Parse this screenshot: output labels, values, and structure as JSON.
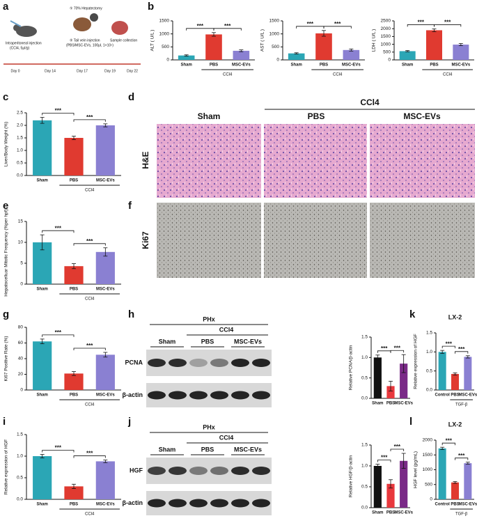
{
  "panel_labels": [
    "a",
    "b",
    "c",
    "d",
    "e",
    "f",
    "g",
    "h",
    "k",
    "i",
    "j",
    "l"
  ],
  "schematic": {
    "steps": [
      "Intraperitoneal injection",
      "(CCl4, 5μl/g)",
      "① 70% Hepatectomy",
      "② Tail vein injection",
      "(PBS/MSC-EVs, 100μl, 1×10⁹)",
      "Sample collection"
    ],
    "days": [
      "Day 0",
      "Day 14",
      "Day 17",
      "Day 19",
      "Day 22"
    ]
  },
  "histology": {
    "group": "CCl4",
    "columns": [
      "Sham",
      "PBS",
      "MSC-EVs"
    ],
    "rows": [
      "H&E",
      "Ki67"
    ]
  },
  "blots": [
    {
      "top": "PHx",
      "group": "CCl4",
      "columns": [
        "Sham",
        "PBS",
        "MSC-EVs"
      ],
      "rows": [
        "PCNA",
        "β-actin"
      ]
    },
    {
      "top": "PHx",
      "group": "CCl4",
      "columns": [
        "Sham",
        "PBS",
        "MSC-EVs"
      ],
      "rows": [
        "HGF",
        "β-actin"
      ]
    }
  ],
  "chart_data": [
    {
      "type": "bar",
      "ylabel": "ALT ( U/L )",
      "categories": [
        "Sham",
        "PBS",
        "MSC-EVs"
      ],
      "values": [
        170,
        980,
        350
      ],
      "errors": [
        25,
        70,
        35
      ],
      "colors": [
        "#2ba6b5",
        "#e03a30",
        "#8a80d2"
      ],
      "ylim": [
        0,
        1500
      ],
      "yticks": [
        0,
        500,
        1000,
        1500
      ],
      "group_label": "CCl4",
      "significance": [
        "***",
        "***"
      ]
    },
    {
      "type": "bar",
      "ylabel": "AST ( U/L )",
      "categories": [
        "Sham",
        "PBS",
        "MSC-EVs"
      ],
      "values": [
        250,
        1020,
        380
      ],
      "errors": [
        25,
        110,
        40
      ],
      "colors": [
        "#2ba6b5",
        "#e03a30",
        "#8a80d2"
      ],
      "ylim": [
        0,
        1500
      ],
      "yticks": [
        0,
        500,
        1000,
        1500
      ],
      "group_label": "CCl4",
      "significance": [
        "***",
        "***"
      ]
    },
    {
      "type": "bar",
      "ylabel": "LDH ( U/L )",
      "categories": [
        "Sham",
        "PBS",
        "MSC-EVs"
      ],
      "values": [
        560,
        1900,
        980
      ],
      "errors": [
        40,
        90,
        70
      ],
      "colors": [
        "#2ba6b5",
        "#e03a30",
        "#8a80d2"
      ],
      "ylim": [
        0,
        2500
      ],
      "yticks": [
        0,
        500,
        1000,
        1500,
        2000,
        2500
      ],
      "group_label": "CCl4",
      "significance": [
        "***",
        "***"
      ]
    },
    {
      "type": "bar",
      "ylabel": "Liver/Body Weight (%)",
      "categories": [
        "Sham",
        "PBS",
        "MSC-EVs"
      ],
      "values": [
        2.2,
        1.5,
        2.0
      ],
      "errors": [
        0.12,
        0.07,
        0.06
      ],
      "colors": [
        "#2ba6b5",
        "#e03a30",
        "#8a80d2"
      ],
      "ylim": [
        0,
        2.5
      ],
      "yticks": [
        {
          "value": 0,
          "label": "0.0"
        },
        0.5,
        {
          "value": 1,
          "label": "1.0"
        },
        1.5,
        {
          "value": 2,
          "label": "2.0"
        },
        2.5
      ],
      "group_label": "CCl4",
      "significance": [
        "***",
        "***"
      ]
    },
    {
      "type": "bar",
      "ylabel": "Hepatocelluar Mitotic Frequency (%per hpf)",
      "categories": [
        "Sham",
        "PBS",
        "MSC-EVs"
      ],
      "values": [
        10,
        4.3,
        7.7
      ],
      "errors": [
        1.8,
        0.6,
        1.0
      ],
      "colors": [
        "#2ba6b5",
        "#e03a30",
        "#8a80d2"
      ],
      "ylim": [
        0,
        15
      ],
      "yticks": [
        0,
        5,
        10,
        15
      ],
      "group_label": "CCl4",
      "significance": [
        "***",
        "***"
      ]
    },
    {
      "type": "bar",
      "ylabel": "Ki67 Positive Rate (%)",
      "categories": [
        "Sham",
        "PBS",
        "MSC-EVs"
      ],
      "values": [
        62,
        21,
        45
      ],
      "errors": [
        3,
        2.5,
        3
      ],
      "colors": [
        "#2ba6b5",
        "#e03a30",
        "#8a80d2"
      ],
      "ylim": [
        0,
        80
      ],
      "yticks": [
        0,
        20,
        40,
        60,
        80
      ],
      "group_label": "CCl4",
      "significance": [
        "***",
        "***"
      ]
    },
    {
      "type": "bar",
      "ylabel": "Relative PCNA/β-actin",
      "categories": [
        "Sham",
        "PBS",
        "MSC-EVs"
      ],
      "values": [
        1.0,
        0.3,
        0.85
      ],
      "errors": [
        0.06,
        0.12,
        0.22
      ],
      "colors": [
        "#111111",
        "#e8383d",
        "#7a2a87"
      ],
      "ylim": [
        0,
        1.5
      ],
      "yticks": [
        {
          "value": 0,
          "label": "0.0"
        },
        0.5,
        {
          "value": 1,
          "label": "1.0"
        },
        1.5
      ],
      "significance": [
        "***",
        "***"
      ]
    },
    {
      "type": "bar",
      "title": "LX-2",
      "ylabel": "Relative expression of HGF",
      "categories": [
        "Control",
        "PBS",
        "MSC-EVs"
      ],
      "values": [
        1.0,
        0.42,
        0.87
      ],
      "errors": [
        0.04,
        0.03,
        0.03
      ],
      "colors": [
        "#2ba6b5",
        "#e03a30",
        "#8a80d2"
      ],
      "ylim": [
        0,
        1.5
      ],
      "yticks": [
        {
          "value": 0,
          "label": "0.0"
        },
        0.5,
        {
          "value": 1,
          "label": "1.0"
        },
        1.5
      ],
      "group_label": "TGF-β",
      "significance": [
        "***",
        "***"
      ]
    },
    {
      "type": "bar",
      "ylabel": "Relative expression of HGF",
      "categories": [
        "Sham",
        "PBS",
        "MSC-EVs"
      ],
      "values": [
        1.0,
        0.3,
        0.88
      ],
      "errors": [
        0.04,
        0.05,
        0.03
      ],
      "colors": [
        "#2ba6b5",
        "#e03a30",
        "#8a80d2"
      ],
      "ylim": [
        0,
        1.5
      ],
      "yticks": [
        {
          "value": 0,
          "label": "0.0"
        },
        0.5,
        {
          "value": 1,
          "label": "1.0"
        },
        1.5
      ],
      "group_label": "CCl4",
      "significance": [
        "***",
        "***"
      ]
    },
    {
      "type": "bar",
      "ylabel": "Relative HGF/β-actin",
      "categories": [
        "Sham",
        "PBS",
        "MSC-EVs"
      ],
      "values": [
        1.0,
        0.57,
        1.12
      ],
      "errors": [
        0.04,
        0.1,
        0.18
      ],
      "colors": [
        "#111111",
        "#e8383d",
        "#7a2a87"
      ],
      "ylim": [
        0,
        1.5
      ],
      "yticks": [
        {
          "value": 0,
          "label": "0.0"
        },
        0.5,
        {
          "value": 1,
          "label": "1.0"
        },
        1.5
      ],
      "significance": [
        "***",
        "***"
      ]
    },
    {
      "type": "bar",
      "title": "LX-2",
      "ylabel": "HGF level (pg/mL)",
      "categories": [
        "Control",
        "PBS",
        "MSC-EVs"
      ],
      "values": [
        1720,
        570,
        1220
      ],
      "errors": [
        40,
        30,
        35
      ],
      "colors": [
        "#2ba6b5",
        "#e03a30",
        "#8a80d2"
      ],
      "ylim": [
        0,
        2000
      ],
      "yticks": [
        0,
        500,
        1000,
        1500,
        2000
      ],
      "group_label": "TGF-β",
      "significance": [
        "***",
        "***"
      ]
    }
  ]
}
